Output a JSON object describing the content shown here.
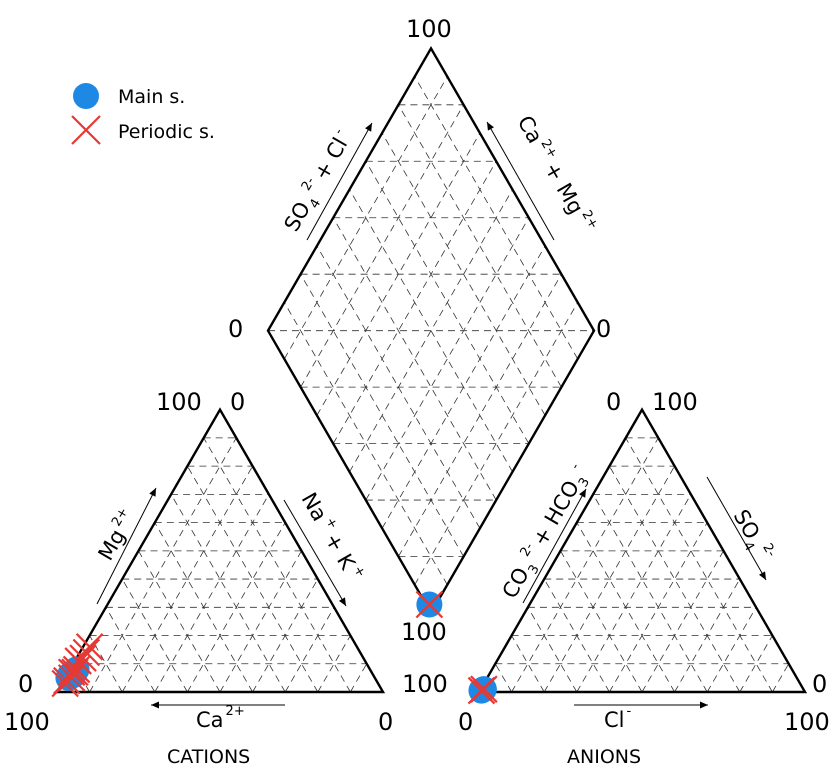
{
  "chart_data": {
    "type": "scatter",
    "subtype": "piper-diagram",
    "legend": {
      "placement": "top-left",
      "items": [
        {
          "label": "Main s.",
          "marker": "filled-circle",
          "color": "#1e88e5"
        },
        {
          "label": "Periodic s.",
          "marker": "x-cross",
          "color": "#e53935"
        }
      ]
    },
    "ticks": {
      "cations_left_100": "100",
      "cations_left_0": "0",
      "cations_top_100": "100",
      "cations_top_0": "0",
      "cations_right_0": "0",
      "anions_left_100": "100",
      "anions_left_0": "0",
      "anions_top_0": "0",
      "anions_top_100": "100",
      "anions_right_0": "0",
      "anions_right_100": "100",
      "diamond_top_100": "100",
      "diamond_left_0": "0",
      "diamond_right_0": "0",
      "diamond_bottom_100": "100"
    },
    "captions": {
      "cations": "CATIONS",
      "anions": "ANIONS"
    },
    "axis_labels": {
      "cat_left": {
        "base": "Mg",
        "sup": "2+"
      },
      "cat_right": {
        "base1": "Na",
        "sup1": "+",
        "mid": "+ K",
        "sup2": "+"
      },
      "cat_bottom": {
        "base": "Ca",
        "sup": "2+"
      },
      "an_left": {
        "base1": "CO",
        "sub1": "3",
        "sup1": "2-",
        "mid": "+ HCO",
        "sub2": "3",
        "sup2": "-"
      },
      "an_right": {
        "base": "SO",
        "sub": "4",
        "sup": "2-"
      },
      "an_bottom": {
        "base": "Cl",
        "sup": "-"
      },
      "dia_left": {
        "base1": "SO",
        "sub1": "4",
        "sup1": "2-",
        "mid": "+ Cl",
        "sup2": "-"
      },
      "dia_right": {
        "base1": "Ca",
        "sup1": "2+",
        "mid": "+ Mg",
        "sup2": "2+"
      }
    },
    "series": [
      {
        "name": "Main s.",
        "cations": [
          {
            "Ca": 94,
            "Mg": 5,
            "NaK": 1
          },
          {
            "Ca": 92,
            "Mg": 6,
            "NaK": 2
          },
          {
            "Ca": 91,
            "Mg": 7,
            "NaK": 2
          },
          {
            "Ca": 93,
            "Mg": 6,
            "NaK": 1
          },
          {
            "Ca": 90,
            "Mg": 8,
            "NaK": 2
          }
        ],
        "anions": [
          {
            "HCO3": 99,
            "SO4": 0.5,
            "Cl": 0.5
          },
          {
            "HCO3": 98,
            "SO4": 1,
            "Cl": 1
          }
        ],
        "diamond": [
          {
            "SO4Cl": 1,
            "CaMg": 98
          }
        ]
      },
      {
        "name": "Periodic s.",
        "cations": [
          {
            "Ca": 96,
            "Mg": 3,
            "NaK": 1
          },
          {
            "Ca": 95,
            "Mg": 4,
            "NaK": 1
          },
          {
            "Ca": 93,
            "Mg": 5,
            "NaK": 2
          },
          {
            "Ca": 92,
            "Mg": 7,
            "NaK": 1
          },
          {
            "Ca": 91,
            "Mg": 7,
            "NaK": 2
          },
          {
            "Ca": 90,
            "Mg": 8,
            "NaK": 2
          },
          {
            "Ca": 88,
            "Mg": 11,
            "NaK": 1
          },
          {
            "Ca": 86,
            "Mg": 12,
            "NaK": 2
          },
          {
            "Ca": 84,
            "Mg": 14,
            "NaK": 2
          },
          {
            "Ca": 82,
            "Mg": 16,
            "NaK": 2
          }
        ],
        "anions": [
          {
            "HCO3": 99,
            "SO4": 0.5,
            "Cl": 0.5
          },
          {
            "HCO3": 98,
            "SO4": 1,
            "Cl": 1
          }
        ],
        "diamond": [
          {
            "SO4Cl": 1,
            "CaMg": 98
          }
        ]
      }
    ]
  }
}
